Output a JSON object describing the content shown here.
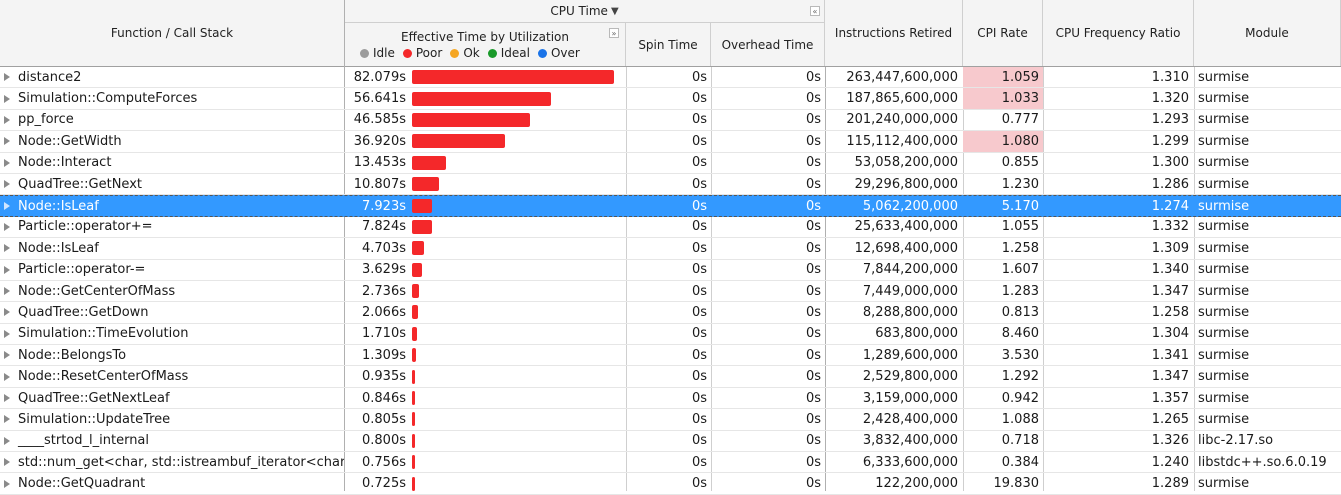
{
  "colors": {
    "poor": "#f4282a",
    "selected": "#3399ff",
    "cpi_highlight": "#f7c9cd",
    "idle": "#9b9b9b",
    "ok": "#f5a623",
    "ideal": "#1a9a2a",
    "over": "#1a73e8"
  },
  "header": {
    "function_call_stack": "Function / Call Stack",
    "cpu_time": "CPU Time",
    "effective_time_by_utilization": "Effective Time by Utilization",
    "spin_time": "Spin Time",
    "overhead_time": "Overhead Time",
    "instructions_retired": "Instructions Retired",
    "cpi_rate": "CPI Rate",
    "cpu_frequency_ratio": "CPU Frequency Ratio",
    "module": "Module",
    "legend": {
      "idle": "Idle",
      "poor": "Poor",
      "ok": "Ok",
      "ideal": "Ideal",
      "over": "Over"
    }
  },
  "rows": [
    {
      "name": "distance2",
      "effective": "82.079s",
      "pct": 1.0,
      "spin": "0s",
      "overhead": "0s",
      "instructions": "263,447,600,000",
      "cpi": "1.059",
      "cpi_hl": true,
      "freq": "1.310",
      "module": "surmise"
    },
    {
      "name": "Simulation::ComputeForces",
      "effective": "56.641s",
      "pct": 0.69,
      "spin": "0s",
      "overhead": "0s",
      "instructions": "187,865,600,000",
      "cpi": "1.033",
      "cpi_hl": true,
      "freq": "1.320",
      "module": "surmise"
    },
    {
      "name": "pp_force",
      "effective": "46.585s",
      "pct": 0.583,
      "spin": "0s",
      "overhead": "0s",
      "instructions": "201,240,000,000",
      "cpi": "0.777",
      "cpi_hl": false,
      "freq": "1.293",
      "module": "surmise"
    },
    {
      "name": "Node::GetWidth",
      "effective": "36.920s",
      "pct": 0.46,
      "spin": "0s",
      "overhead": "0s",
      "instructions": "115,112,400,000",
      "cpi": "1.080",
      "cpi_hl": true,
      "freq": "1.299",
      "module": "surmise"
    },
    {
      "name": "Node::Interact",
      "effective": "13.453s",
      "pct": 0.168,
      "spin": "0s",
      "overhead": "0s",
      "instructions": "53,058,200,000",
      "cpi": "0.855",
      "cpi_hl": false,
      "freq": "1.300",
      "module": "surmise"
    },
    {
      "name": "QuadTree::GetNext",
      "effective": "10.807s",
      "pct": 0.136,
      "spin": "0s",
      "overhead": "0s",
      "instructions": "29,296,800,000",
      "cpi": "1.230",
      "cpi_hl": false,
      "freq": "1.286",
      "module": "surmise"
    },
    {
      "name": "Node::IsLeaf",
      "effective": "7.923s",
      "pct": 0.099,
      "spin": "0s",
      "overhead": "0s",
      "instructions": "5,062,200,000",
      "cpi": "5.170",
      "cpi_hl": false,
      "freq": "1.274",
      "module": "surmise",
      "selected": true
    },
    {
      "name": "Particle::operator+=",
      "effective": "7.824s",
      "pct": 0.099,
      "spin": "0s",
      "overhead": "0s",
      "instructions": "25,633,400,000",
      "cpi": "1.055",
      "cpi_hl": false,
      "freq": "1.332",
      "module": "surmise"
    },
    {
      "name": "Node::IsLeaf",
      "effective": "4.703s",
      "pct": 0.06,
      "spin": "0s",
      "overhead": "0s",
      "instructions": "12,698,400,000",
      "cpi": "1.258",
      "cpi_hl": false,
      "freq": "1.309",
      "module": "surmise"
    },
    {
      "name": "Particle::operator-=",
      "effective": "3.629s",
      "pct": 0.05,
      "spin": "0s",
      "overhead": "0s",
      "instructions": "7,844,200,000",
      "cpi": "1.607",
      "cpi_hl": false,
      "freq": "1.340",
      "module": "surmise"
    },
    {
      "name": "Node::GetCenterOfMass",
      "effective": "2.736s",
      "pct": 0.035,
      "spin": "0s",
      "overhead": "0s",
      "instructions": "7,449,000,000",
      "cpi": "1.283",
      "cpi_hl": false,
      "freq": "1.347",
      "module": "surmise"
    },
    {
      "name": "QuadTree::GetDown",
      "effective": "2.066s",
      "pct": 0.03,
      "spin": "0s",
      "overhead": "0s",
      "instructions": "8,288,800,000",
      "cpi": "0.813",
      "cpi_hl": false,
      "freq": "1.258",
      "module": "surmise"
    },
    {
      "name": "Simulation::TimeEvolution",
      "effective": "1.710s",
      "pct": 0.025,
      "spin": "0s",
      "overhead": "0s",
      "instructions": "683,800,000",
      "cpi": "8.460",
      "cpi_hl": false,
      "freq": "1.304",
      "module": "surmise"
    },
    {
      "name": "Node::BelongsTo",
      "effective": "1.309s",
      "pct": 0.02,
      "spin": "0s",
      "overhead": "0s",
      "instructions": "1,289,600,000",
      "cpi": "3.530",
      "cpi_hl": false,
      "freq": "1.341",
      "module": "surmise"
    },
    {
      "name": "Node::ResetCenterOfMass",
      "effective": "0.935s",
      "pct": 0.014,
      "spin": "0s",
      "overhead": "0s",
      "instructions": "2,529,800,000",
      "cpi": "1.292",
      "cpi_hl": false,
      "freq": "1.347",
      "module": "surmise"
    },
    {
      "name": "QuadTree::GetNextLeaf",
      "effective": "0.846s",
      "pct": 0.012,
      "spin": "0s",
      "overhead": "0s",
      "instructions": "3,159,000,000",
      "cpi": "0.942",
      "cpi_hl": false,
      "freq": "1.357",
      "module": "surmise"
    },
    {
      "name": "Simulation::UpdateTree",
      "effective": "0.805s",
      "pct": 0.011,
      "spin": "0s",
      "overhead": "0s",
      "instructions": "2,428,400,000",
      "cpi": "1.088",
      "cpi_hl": false,
      "freq": "1.265",
      "module": "surmise"
    },
    {
      "name": "____strtod_l_internal",
      "effective": "0.800s",
      "pct": 0.011,
      "spin": "0s",
      "overhead": "0s",
      "instructions": "3,832,400,000",
      "cpi": "0.718",
      "cpi_hl": false,
      "freq": "1.326",
      "module": "libc-2.17.so"
    },
    {
      "name": "std::num_get<char, std::istreambuf_iterator<char, s",
      "effective": "0.756s",
      "pct": 0.01,
      "spin": "0s",
      "overhead": "0s",
      "instructions": "6,333,600,000",
      "cpi": "0.384",
      "cpi_hl": false,
      "freq": "1.240",
      "module": "libstdc++.so.6.0.19"
    },
    {
      "name": "Node::GetQuadrant",
      "effective": "0.725s",
      "pct": 0.01,
      "spin": "0s",
      "overhead": "0s",
      "instructions": "122,200,000",
      "cpi": "19.830",
      "cpi_hl": false,
      "freq": "1.289",
      "module": "surmise"
    }
  ]
}
